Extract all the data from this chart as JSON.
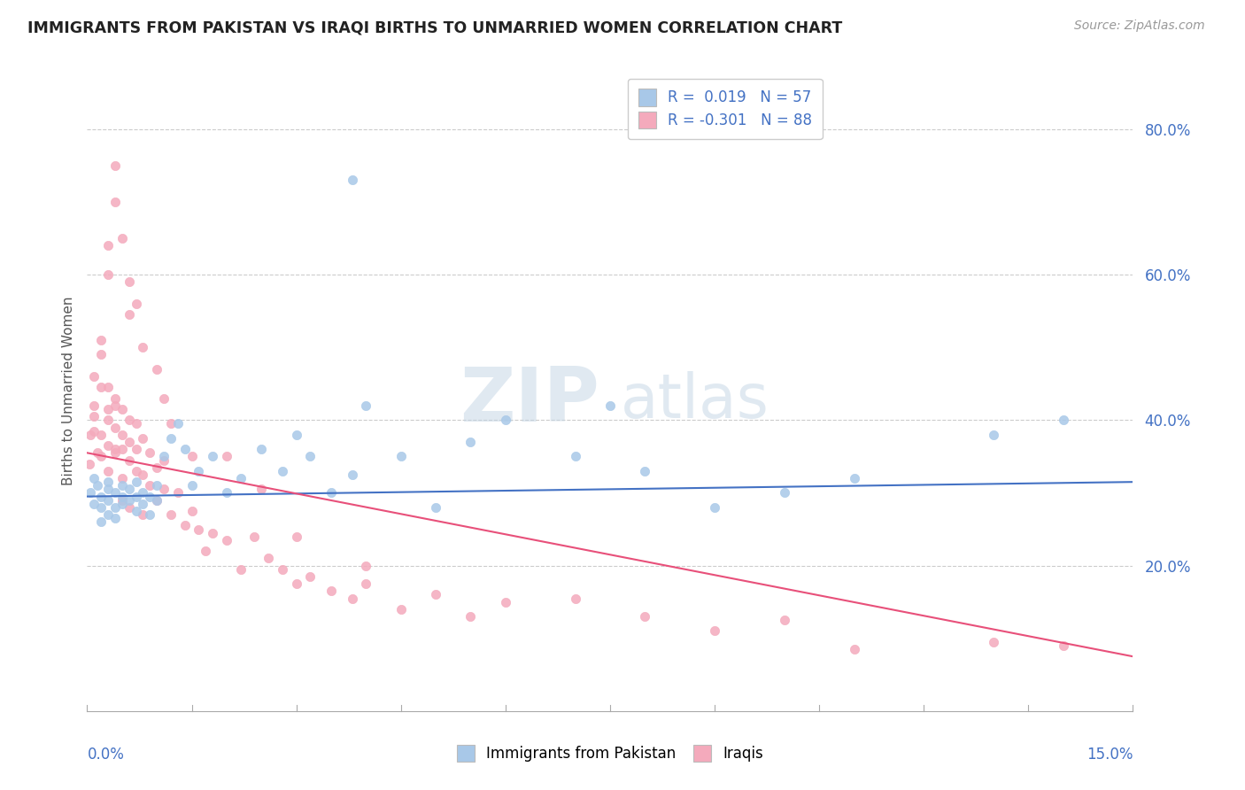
{
  "title": "IMMIGRANTS FROM PAKISTAN VS IRAQI BIRTHS TO UNMARRIED WOMEN CORRELATION CHART",
  "source_text": "Source: ZipAtlas.com",
  "ylabel": "Births to Unmarried Women",
  "x_min": 0.0,
  "x_max": 0.15,
  "y_min": 0.0,
  "y_max": 0.88,
  "blue_R": 0.019,
  "blue_N": 57,
  "pink_R": -0.301,
  "pink_N": 88,
  "blue_dot_color": "#A8C8E8",
  "pink_dot_color": "#F4AABC",
  "blue_line_color": "#4472C4",
  "pink_line_color": "#E8507A",
  "tick_color": "#4472C4",
  "legend_blue_label": "Immigrants from Pakistan",
  "legend_pink_label": "Iraqis",
  "watermark_zip": "ZIP",
  "watermark_atlas": "atlas",
  "watermark_color_zip": "#C5D5E5",
  "watermark_color_atlas": "#C5D5E5",
  "background_color": "#FFFFFF",
  "grid_color": "#CCCCCC",
  "y_ticks": [
    0.2,
    0.4,
    0.6,
    0.8
  ],
  "y_tick_labels": [
    "20.0%",
    "40.0%",
    "60.0%",
    "80.0%"
  ],
  "blue_line_y0": 0.295,
  "blue_line_y1": 0.315,
  "pink_line_y0": 0.355,
  "pink_line_y1": 0.075,
  "blue_x": [
    0.0005,
    0.001,
    0.001,
    0.0015,
    0.002,
    0.002,
    0.002,
    0.003,
    0.003,
    0.003,
    0.003,
    0.004,
    0.004,
    0.004,
    0.005,
    0.005,
    0.005,
    0.006,
    0.006,
    0.007,
    0.007,
    0.007,
    0.008,
    0.008,
    0.009,
    0.009,
    0.01,
    0.01,
    0.011,
    0.012,
    0.013,
    0.014,
    0.015,
    0.016,
    0.018,
    0.02,
    0.022,
    0.025,
    0.028,
    0.03,
    0.032,
    0.035,
    0.038,
    0.04,
    0.045,
    0.05,
    0.055,
    0.06,
    0.07,
    0.075,
    0.08,
    0.09,
    0.1,
    0.11,
    0.13,
    0.14,
    0.038
  ],
  "blue_y": [
    0.3,
    0.285,
    0.32,
    0.31,
    0.295,
    0.28,
    0.26,
    0.305,
    0.29,
    0.27,
    0.315,
    0.3,
    0.28,
    0.265,
    0.295,
    0.31,
    0.285,
    0.29,
    0.305,
    0.295,
    0.275,
    0.315,
    0.285,
    0.3,
    0.295,
    0.27,
    0.31,
    0.29,
    0.35,
    0.375,
    0.395,
    0.36,
    0.31,
    0.33,
    0.35,
    0.3,
    0.32,
    0.36,
    0.33,
    0.38,
    0.35,
    0.3,
    0.325,
    0.42,
    0.35,
    0.28,
    0.37,
    0.4,
    0.35,
    0.42,
    0.33,
    0.28,
    0.3,
    0.32,
    0.38,
    0.4,
    0.73
  ],
  "pink_x": [
    0.0003,
    0.0005,
    0.001,
    0.001,
    0.001,
    0.001,
    0.0015,
    0.002,
    0.002,
    0.002,
    0.002,
    0.002,
    0.003,
    0.003,
    0.003,
    0.003,
    0.003,
    0.004,
    0.004,
    0.004,
    0.004,
    0.004,
    0.005,
    0.005,
    0.005,
    0.005,
    0.005,
    0.006,
    0.006,
    0.006,
    0.006,
    0.007,
    0.007,
    0.007,
    0.008,
    0.008,
    0.008,
    0.009,
    0.009,
    0.01,
    0.01,
    0.011,
    0.011,
    0.012,
    0.013,
    0.014,
    0.015,
    0.016,
    0.017,
    0.018,
    0.02,
    0.022,
    0.024,
    0.026,
    0.028,
    0.03,
    0.032,
    0.035,
    0.038,
    0.04,
    0.045,
    0.05,
    0.055,
    0.06,
    0.07,
    0.08,
    0.09,
    0.1,
    0.11,
    0.13,
    0.003,
    0.003,
    0.004,
    0.004,
    0.005,
    0.006,
    0.006,
    0.007,
    0.008,
    0.01,
    0.011,
    0.012,
    0.015,
    0.02,
    0.025,
    0.03,
    0.04,
    0.14
  ],
  "pink_y": [
    0.34,
    0.38,
    0.42,
    0.46,
    0.385,
    0.405,
    0.355,
    0.445,
    0.49,
    0.51,
    0.38,
    0.35,
    0.415,
    0.445,
    0.365,
    0.4,
    0.33,
    0.42,
    0.39,
    0.36,
    0.43,
    0.355,
    0.38,
    0.415,
    0.36,
    0.32,
    0.29,
    0.37,
    0.4,
    0.345,
    0.28,
    0.36,
    0.33,
    0.395,
    0.375,
    0.325,
    0.27,
    0.355,
    0.31,
    0.335,
    0.29,
    0.345,
    0.305,
    0.27,
    0.3,
    0.255,
    0.275,
    0.25,
    0.22,
    0.245,
    0.235,
    0.195,
    0.24,
    0.21,
    0.195,
    0.175,
    0.185,
    0.165,
    0.155,
    0.175,
    0.14,
    0.16,
    0.13,
    0.15,
    0.155,
    0.13,
    0.11,
    0.125,
    0.085,
    0.095,
    0.64,
    0.6,
    0.7,
    0.75,
    0.65,
    0.59,
    0.545,
    0.56,
    0.5,
    0.47,
    0.43,
    0.395,
    0.35,
    0.35,
    0.305,
    0.24,
    0.2,
    0.09
  ]
}
